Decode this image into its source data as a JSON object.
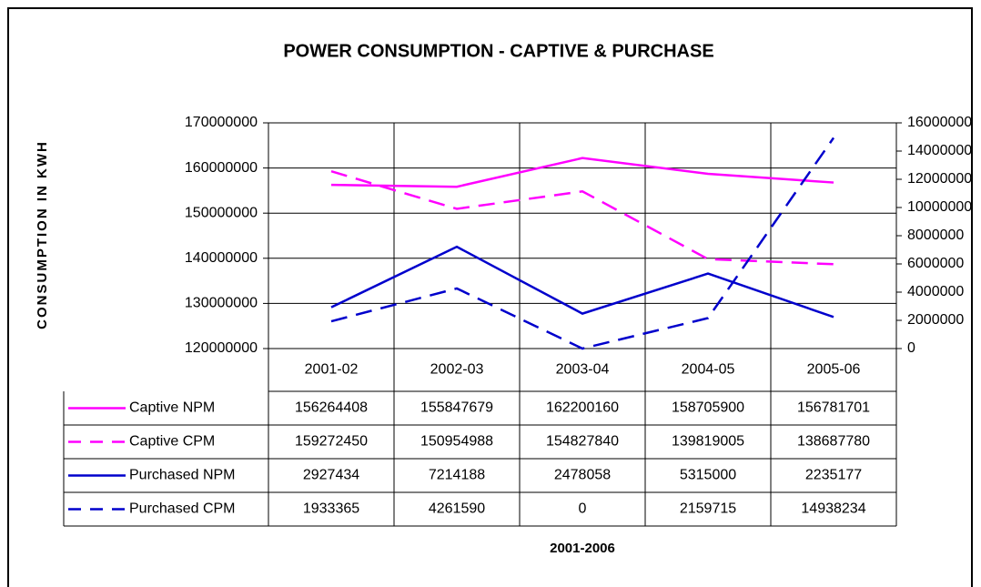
{
  "chart_data": {
    "type": "line",
    "title": "POWER CONSUMPTION - CAPTIVE & PURCHASE",
    "y_label": "CONSUMPTION IN KWH",
    "x_label": "2001-2006",
    "categories": [
      "2001-02",
      "2002-03",
      "2003-04",
      "2004-05",
      "2005-06"
    ],
    "series": [
      {
        "name": "Captive NPM",
        "color": "#ff00ff",
        "line_style": "solid",
        "axis": "y",
        "values": [
          156264408,
          155847679,
          162200160,
          158705900,
          156781701
        ]
      },
      {
        "name": "Captive CPM",
        "color": "#ff00ff",
        "line_style": "dashed",
        "axis": "y",
        "values": [
          159272450,
          150954988,
          154827840,
          139819005,
          138687780
        ]
      },
      {
        "name": "Purchased NPM",
        "color": "#0000cc",
        "line_style": "solid",
        "axis": "y2",
        "values": [
          2927434,
          7214188,
          2478058,
          5315000,
          2235177
        ]
      },
      {
        "name": "Purchased CPM",
        "color": "#0000cc",
        "line_style": "dashed",
        "axis": "y2",
        "values": [
          1933365,
          4261590,
          0,
          2159715,
          14938234
        ]
      }
    ],
    "ylim": [
      120000000,
      170000000
    ],
    "yticks": [
      120000000,
      130000000,
      140000000,
      150000000,
      160000000,
      170000000
    ],
    "y2lim": [
      0,
      16000000
    ],
    "y2ticks": [
      0,
      2000000,
      4000000,
      6000000,
      8000000,
      10000000,
      12000000,
      14000000,
      16000000
    ],
    "grid": true,
    "data_table": true
  }
}
